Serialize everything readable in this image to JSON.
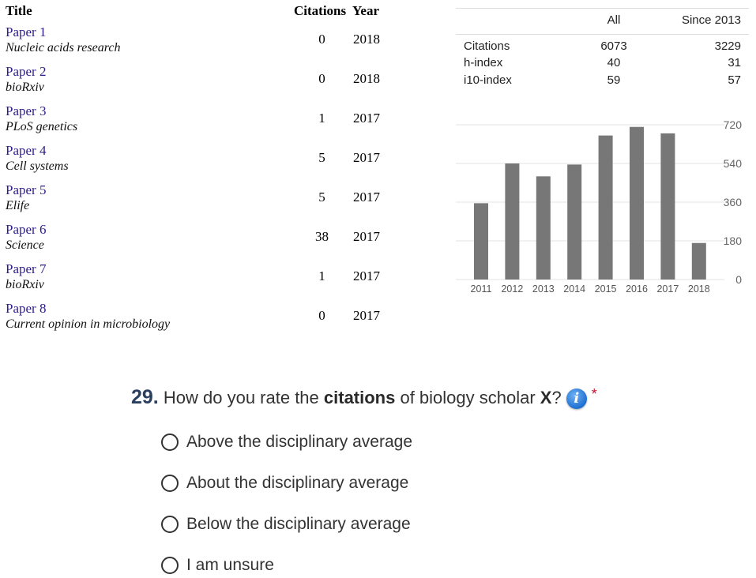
{
  "publications": {
    "headers": {
      "title": "Title",
      "citations": "Citations",
      "year": "Year"
    },
    "rows": [
      {
        "title": "Paper 1",
        "venue": "Nucleic acids research",
        "citations": "0",
        "year": "2018"
      },
      {
        "title": "Paper 2",
        "venue": "bioRxiv",
        "citations": "0",
        "year": "2018"
      },
      {
        "title": "Paper 3",
        "venue": "PLoS genetics",
        "citations": "1",
        "year": "2017"
      },
      {
        "title": "Paper 4",
        "venue": "Cell systems",
        "citations": "5",
        "year": "2017"
      },
      {
        "title": "Paper 5",
        "venue": "Elife",
        "citations": "5",
        "year": "2017"
      },
      {
        "title": "Paper 6",
        "venue": "Science",
        "citations": "38",
        "year": "2017"
      },
      {
        "title": "Paper 7",
        "venue": "bioRxiv",
        "citations": "1",
        "year": "2017"
      },
      {
        "title": "Paper 8",
        "venue": "Current opinion in microbiology",
        "citations": "0",
        "year": "2017"
      }
    ]
  },
  "metrics": {
    "col_all": "All",
    "col_since": "Since 2013",
    "rows": [
      {
        "label": "Citations",
        "all": "6073",
        "since": "3229"
      },
      {
        "label": "h-index",
        "all": "40",
        "since": "31"
      },
      {
        "label": "i10-index",
        "all": "59",
        "since": "57"
      }
    ]
  },
  "chart_data": {
    "type": "bar",
    "categories": [
      "2011",
      "2012",
      "2013",
      "2014",
      "2015",
      "2016",
      "2017",
      "2018"
    ],
    "values": [
      355,
      540,
      480,
      535,
      670,
      710,
      680,
      170
    ],
    "ylim": [
      0,
      720
    ],
    "yticks": [
      "0",
      "180",
      "360",
      "540",
      "720"
    ],
    "grid": true,
    "bar_color": "#777777"
  },
  "question": {
    "number": "29.",
    "text_before": " How do you rate the ",
    "bold_word": "citations",
    "text_middle": " of biology scholar ",
    "bold_x": "X",
    "text_after": "?",
    "info_glyph": "i",
    "required_mark": "*",
    "options": [
      "Above the disciplinary average",
      "About the disciplinary average",
      "Below the disciplinary average",
      "I am unsure"
    ]
  }
}
